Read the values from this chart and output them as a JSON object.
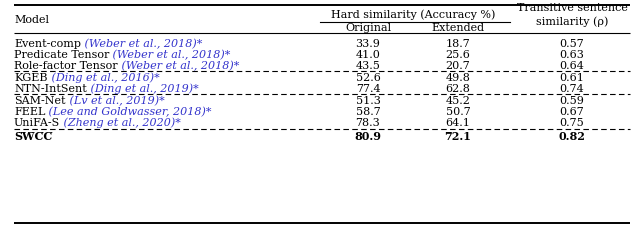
{
  "rows": [
    {
      "model": "Event-comp",
      "cite": " (Weber et al., 2018)*",
      "orig": "33.9",
      "ext": "18.7",
      "trans": "0.57",
      "bold": false,
      "group": 0
    },
    {
      "model": "Predicate Tensor",
      "cite": " (Weber et al., 2018)*",
      "orig": "41.0",
      "ext": "25.6",
      "trans": "0.63",
      "bold": false,
      "group": 0
    },
    {
      "model": "Role-factor Tensor",
      "cite": " (Weber et al., 2018)*",
      "orig": "43.5",
      "ext": "20.7",
      "trans": "0.64",
      "bold": false,
      "group": 0
    },
    {
      "model": "KGEB",
      "cite": " (Ding et al., 2016)*",
      "orig": "52.6",
      "ext": "49.8",
      "trans": "0.61",
      "bold": false,
      "group": 1
    },
    {
      "model": "NTN-IntSent",
      "cite": " (Ding et al., 2019)*",
      "orig": "77.4",
      "ext": "62.8",
      "trans": "0.74",
      "bold": false,
      "group": 1
    },
    {
      "model": "SAM-Net",
      "cite": " (Lv et al., 2019)*",
      "orig": "51.3",
      "ext": "45.2",
      "trans": "0.59",
      "bold": false,
      "group": 2
    },
    {
      "model": "FEEL",
      "cite": " (Lee and Goldwasser, 2018)*",
      "orig": "58.7",
      "ext": "50.7",
      "trans": "0.67",
      "bold": false,
      "group": 2
    },
    {
      "model": "UniFA-S",
      "cite": " (Zheng et al., 2020)*",
      "orig": "78.3",
      "ext": "64.1",
      "trans": "0.75",
      "bold": false,
      "group": 2
    },
    {
      "model": "S̅W̅C̅C̅",
      "cite": "",
      "orig": "80.9",
      "ext": "72.1",
      "trans": "0.82",
      "bold": true,
      "group": 3
    }
  ],
  "cite_color": "#3333cc",
  "bg_color": "#ffffff",
  "text_color": "#000000"
}
